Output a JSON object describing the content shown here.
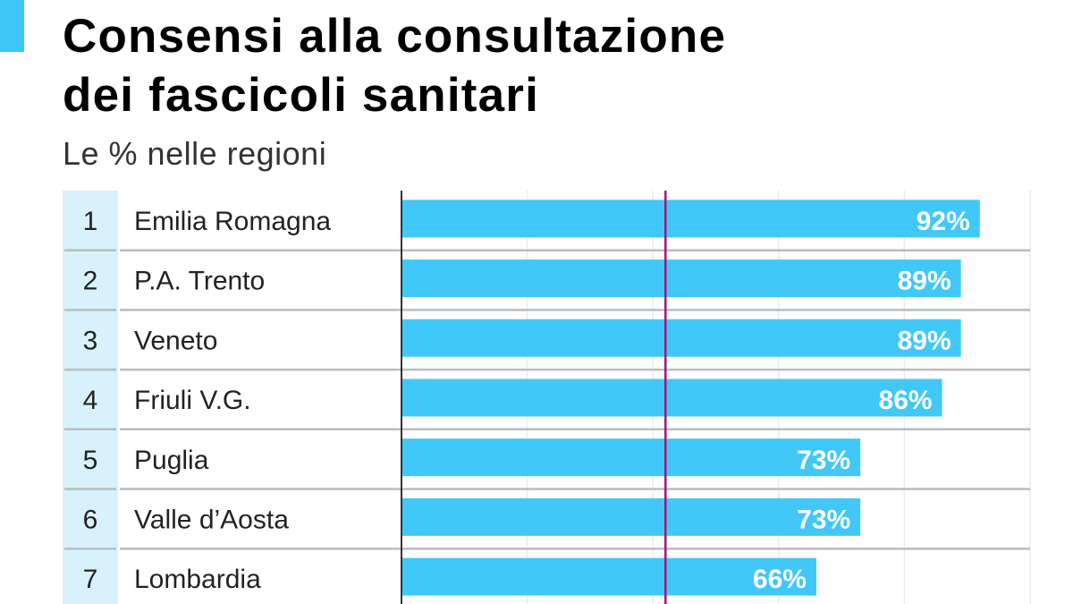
{
  "header": {
    "title_line1": "Consensi alla consultazione",
    "title_line2": "dei fascicoli sanitari",
    "subtitle": "Le % nelle regioni"
  },
  "colors": {
    "accent": "#3fc6f7",
    "bar": "#41c8f9",
    "rank_bg": "#d9f1fb",
    "reference_line": "#a2157f",
    "separator": "#b9bdbd"
  },
  "chart_data": {
    "type": "bar",
    "orientation": "horizontal",
    "title": "Consensi alla consultazione dei fascicoli sanitari",
    "subtitle": "Le % nelle regioni",
    "ranks": [
      "1",
      "2",
      "3",
      "4",
      "5",
      "6",
      "7"
    ],
    "categories": [
      "Emilia Romagna",
      "P.A. Trento",
      "Veneto",
      "Friuli V.G.",
      "Puglia",
      "Valle d’Aosta",
      "Lombardia"
    ],
    "values": [
      92,
      89,
      89,
      86,
      73,
      73,
      66
    ],
    "value_labels": [
      "92%",
      "89%",
      "89%",
      "86%",
      "73%",
      "73%",
      "66%"
    ],
    "xlim": [
      0,
      100
    ],
    "gridlines": [
      20,
      40,
      60,
      80,
      100
    ],
    "reference_line": 42,
    "unit": "%"
  }
}
